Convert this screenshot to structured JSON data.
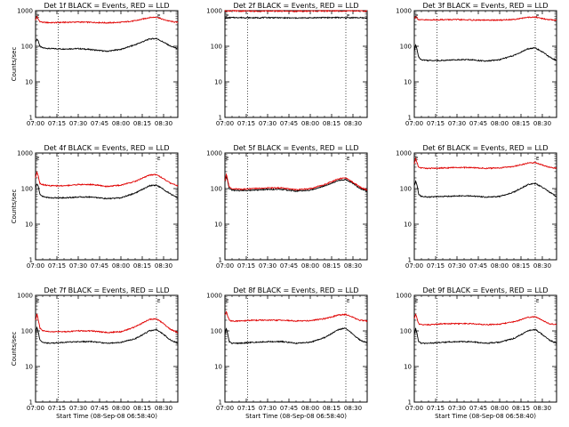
{
  "figure": {
    "background": "#ffffff",
    "axis_color": "#000000",
    "series_colors": {
      "events": "#000000",
      "lld": "#e00000"
    }
  },
  "chart_data": [
    {
      "type": "line",
      "title": "Det 1f BLACK = Events, RED = LLD",
      "ylabel": "Counts/sec",
      "xlabel": "",
      "yscale": "log",
      "ylim": [
        1,
        1000
      ],
      "x_ticks": [
        "07:00",
        "07:15",
        "07:30",
        "07:45",
        "08:00",
        "08:15",
        "08:30"
      ],
      "xlim_min": [
        0,
        100
      ],
      "y_ticks": [
        "1",
        "10",
        "100",
        "1000"
      ],
      "vlines_min": [
        16,
        85
      ],
      "marker_labels": [
        {
          "text": "E",
          "at_min": 85
        }
      ],
      "series": [
        {
          "name": "Events",
          "color": "#000000",
          "x": [
            0,
            1,
            2,
            3,
            5,
            10,
            20,
            30,
            40,
            50,
            60,
            70,
            80,
            85,
            90,
            95,
            100
          ],
          "y": [
            130,
            160,
            140,
            100,
            90,
            86,
            84,
            86,
            80,
            72,
            82,
            110,
            160,
            165,
            130,
            100,
            85
          ]
        },
        {
          "name": "LLD",
          "color": "#e00000",
          "x": [
            0,
            1,
            2,
            3,
            5,
            10,
            20,
            30,
            40,
            50,
            60,
            70,
            80,
            85,
            90,
            95,
            100
          ],
          "y": [
            550,
            700,
            560,
            500,
            470,
            460,
            470,
            480,
            470,
            455,
            470,
            520,
            640,
            660,
            560,
            500,
            470
          ]
        }
      ]
    },
    {
      "type": "line",
      "title": "Det 2f BLACK = Events, RED = LLD",
      "ylabel": "",
      "xlabel": "",
      "yscale": "log",
      "ylim": [
        1,
        1000
      ],
      "x_ticks": [
        "07:00",
        "07:15",
        "07:30",
        "07:45",
        "08:00",
        "08:15",
        "08:30"
      ],
      "xlim_min": [
        0,
        100
      ],
      "y_ticks": [
        "1",
        "10",
        "100",
        "1000"
      ],
      "vlines_min": [
        16,
        85
      ],
      "marker_labels": [
        {
          "text": "E",
          "at_min": 85
        }
      ],
      "series": [
        {
          "name": "Events",
          "color": "#000000",
          "x": [
            0,
            5,
            10,
            20,
            30,
            40,
            50,
            60,
            70,
            80,
            85,
            90,
            100
          ],
          "y": [
            620,
            640,
            640,
            630,
            640,
            630,
            620,
            630,
            640,
            640,
            630,
            640,
            620
          ]
        },
        {
          "name": "LLD",
          "color": "#e00000",
          "x": [
            0,
            5,
            10,
            20,
            30,
            40,
            50,
            60,
            70,
            80,
            85,
            90,
            100
          ],
          "y": [
            980,
            990,
            980,
            970,
            980,
            975,
            965,
            975,
            985,
            985,
            975,
            985,
            970
          ]
        }
      ]
    },
    {
      "type": "line",
      "title": "Det 3f BLACK = Events, RED = LLD",
      "ylabel": "",
      "xlabel": "",
      "yscale": "log",
      "ylim": [
        1,
        1000
      ],
      "x_ticks": [
        "07:00",
        "07:15",
        "07:30",
        "07:45",
        "08:00",
        "08:15",
        "08:30"
      ],
      "xlim_min": [
        0,
        100
      ],
      "y_ticks": [
        "1",
        "10",
        "100",
        "1000"
      ],
      "vlines_min": [
        16,
        85
      ],
      "marker_labels": [
        {
          "text": "E",
          "at_min": 85
        }
      ],
      "series": [
        {
          "name": "Events",
          "color": "#000000",
          "x": [
            0,
            1,
            2,
            3,
            5,
            10,
            20,
            30,
            40,
            50,
            60,
            70,
            80,
            85,
            90,
            95,
            100
          ],
          "y": [
            70,
            110,
            80,
            50,
            42,
            40,
            40,
            42,
            42,
            38,
            42,
            55,
            85,
            90,
            70,
            50,
            40
          ]
        },
        {
          "name": "LLD",
          "color": "#e00000",
          "x": [
            0,
            1,
            2,
            3,
            5,
            10,
            20,
            30,
            40,
            50,
            60,
            70,
            80,
            85,
            90,
            95,
            100
          ],
          "y": [
            600,
            700,
            620,
            560,
            550,
            550,
            560,
            560,
            550,
            540,
            545,
            570,
            650,
            660,
            600,
            560,
            540
          ]
        }
      ]
    },
    {
      "type": "line",
      "title": "Det 4f BLACK = Events, RED = LLD",
      "ylabel": "Counts/sec",
      "xlabel": "",
      "yscale": "log",
      "ylim": [
        1,
        1000
      ],
      "x_ticks": [
        "07:00",
        "07:15",
        "07:30",
        "07:45",
        "08:00",
        "08:15",
        "08:30"
      ],
      "xlim_min": [
        0,
        100
      ],
      "y_ticks": [
        "1",
        "10",
        "100",
        "1000"
      ],
      "vlines_min": [
        16,
        85
      ],
      "marker_labels": [
        {
          "text": "E",
          "at_min": 85
        }
      ],
      "series": [
        {
          "name": "Events",
          "color": "#000000",
          "x": [
            0,
            1,
            2,
            3,
            5,
            10,
            20,
            30,
            40,
            50,
            60,
            70,
            80,
            85,
            90,
            95,
            100
          ],
          "y": [
            100,
            140,
            110,
            70,
            60,
            55,
            55,
            58,
            58,
            52,
            55,
            75,
            120,
            125,
            95,
            70,
            55
          ]
        },
        {
          "name": "LLD",
          "color": "#e00000",
          "x": [
            0,
            1,
            2,
            3,
            5,
            10,
            20,
            30,
            40,
            50,
            60,
            70,
            80,
            85,
            90,
            95,
            100
          ],
          "y": [
            200,
            300,
            220,
            140,
            130,
            120,
            120,
            130,
            130,
            115,
            125,
            160,
            240,
            250,
            190,
            140,
            120
          ]
        }
      ]
    },
    {
      "type": "line",
      "title": "Det 5f BLACK = Events, RED = LLD",
      "ylabel": "",
      "xlabel": "",
      "yscale": "log",
      "ylim": [
        1,
        1000
      ],
      "x_ticks": [
        "07:00",
        "07:15",
        "07:30",
        "07:45",
        "08:00",
        "08:15",
        "08:30"
      ],
      "xlim_min": [
        0,
        100
      ],
      "y_ticks": [
        "1",
        "10",
        "100",
        "1000"
      ],
      "vlines_min": [
        16,
        85
      ],
      "marker_labels": [
        {
          "text": "E",
          "at_min": 85
        }
      ],
      "series": [
        {
          "name": "Events",
          "color": "#000000",
          "x": [
            0,
            1,
            2,
            3,
            5,
            10,
            20,
            30,
            40,
            50,
            60,
            70,
            80,
            85,
            90,
            95,
            100
          ],
          "y": [
            150,
            220,
            160,
            100,
            90,
            88,
            90,
            95,
            95,
            85,
            90,
            120,
            170,
            180,
            140,
            100,
            85
          ]
        },
        {
          "name": "LLD",
          "color": "#e00000",
          "x": [
            0,
            1,
            2,
            3,
            5,
            10,
            20,
            30,
            40,
            50,
            60,
            70,
            80,
            85,
            90,
            95,
            100
          ],
          "y": [
            160,
            250,
            170,
            110,
            100,
            96,
            100,
            105,
            105,
            92,
            100,
            130,
            190,
            200,
            150,
            110,
            92
          ]
        }
      ]
    },
    {
      "type": "line",
      "title": "Det 6f BLACK = Events, RED = LLD",
      "ylabel": "",
      "xlabel": "",
      "yscale": "log",
      "ylim": [
        1,
        1000
      ],
      "x_ticks": [
        "07:00",
        "07:15",
        "07:30",
        "07:45",
        "08:00",
        "08:15",
        "08:30"
      ],
      "xlim_min": [
        0,
        100
      ],
      "y_ticks": [
        "1",
        "10",
        "100",
        "1000"
      ],
      "vlines_min": [
        16,
        85
      ],
      "marker_labels": [
        {
          "text": "E",
          "at_min": 85
        }
      ],
      "series": [
        {
          "name": "Events",
          "color": "#000000",
          "x": [
            0,
            1,
            2,
            3,
            5,
            10,
            20,
            30,
            40,
            50,
            60,
            70,
            80,
            85,
            90,
            95,
            100
          ],
          "y": [
            120,
            160,
            120,
            70,
            60,
            58,
            60,
            62,
            62,
            58,
            60,
            80,
            130,
            140,
            110,
            80,
            60
          ]
        },
        {
          "name": "LLD",
          "color": "#e00000",
          "x": [
            0,
            1,
            2,
            3,
            5,
            10,
            20,
            30,
            40,
            50,
            60,
            70,
            80,
            85,
            90,
            95,
            100
          ],
          "y": [
            500,
            700,
            520,
            400,
            380,
            370,
            380,
            390,
            390,
            370,
            380,
            420,
            520,
            540,
            460,
            400,
            370
          ]
        }
      ]
    },
    {
      "type": "line",
      "title": "Det 7f BLACK = Events, RED = LLD",
      "ylabel": "Counts/sec",
      "xlabel": "Start Time (08-Sep-08 06:58:40)",
      "yscale": "log",
      "ylim": [
        1,
        1000
      ],
      "x_ticks": [
        "07:00",
        "07:15",
        "07:30",
        "07:45",
        "08:00",
        "08:15",
        "08:30"
      ],
      "xlim_min": [
        0,
        100
      ],
      "y_ticks": [
        "1",
        "10",
        "100",
        "1000"
      ],
      "vlines_min": [
        16,
        85
      ],
      "marker_labels": [
        {
          "text": "E",
          "at_min": 85
        }
      ],
      "series": [
        {
          "name": "Events",
          "color": "#000000",
          "x": [
            0,
            1,
            2,
            3,
            5,
            10,
            20,
            30,
            40,
            50,
            60,
            70,
            80,
            85,
            90,
            95,
            100
          ],
          "y": [
            80,
            130,
            90,
            55,
            48,
            45,
            48,
            50,
            50,
            45,
            48,
            60,
            100,
            110,
            80,
            55,
            45
          ]
        },
        {
          "name": "LLD",
          "color": "#e00000",
          "x": [
            0,
            1,
            2,
            3,
            5,
            10,
            20,
            30,
            40,
            50,
            60,
            70,
            80,
            85,
            90,
            95,
            100
          ],
          "y": [
            200,
            300,
            200,
            120,
            100,
            95,
            95,
            100,
            100,
            90,
            95,
            130,
            210,
            220,
            160,
            110,
            90
          ]
        }
      ]
    },
    {
      "type": "line",
      "title": "Det 8f BLACK = Events, RED = LLD",
      "ylabel": "",
      "xlabel": "Start Time (08-Sep-08 06:58:40)",
      "yscale": "log",
      "ylim": [
        1,
        1000
      ],
      "x_ticks": [
        "07:00",
        "07:15",
        "07:30",
        "07:45",
        "08:00",
        "08:15",
        "08:30"
      ],
      "xlim_min": [
        0,
        100
      ],
      "y_ticks": [
        "1",
        "10",
        "100",
        "1000"
      ],
      "vlines_min": [
        16,
        85
      ],
      "marker_labels": [
        {
          "text": "E",
          "at_min": 85
        }
      ],
      "series": [
        {
          "name": "Events",
          "color": "#000000",
          "x": [
            0,
            1,
            2,
            3,
            5,
            10,
            20,
            30,
            40,
            50,
            60,
            70,
            80,
            85,
            90,
            95,
            100
          ],
          "y": [
            80,
            120,
            80,
            50,
            45,
            45,
            48,
            50,
            50,
            45,
            48,
            65,
            110,
            120,
            80,
            55,
            45
          ]
        },
        {
          "name": "LLD",
          "color": "#e00000",
          "x": [
            0,
            1,
            2,
            3,
            5,
            10,
            20,
            30,
            40,
            50,
            60,
            70,
            80,
            85,
            90,
            95,
            100
          ],
          "y": [
            280,
            350,
            260,
            200,
            190,
            190,
            200,
            200,
            200,
            190,
            195,
            220,
            280,
            290,
            240,
            200,
            190
          ]
        }
      ]
    },
    {
      "type": "line",
      "title": "Det 9f BLACK = Events, RED = LLD",
      "ylabel": "",
      "xlabel": "Start Time (08-Sep-08 06:58:40)",
      "yscale": "log",
      "ylim": [
        1,
        1000
      ],
      "x_ticks": [
        "07:00",
        "07:15",
        "07:30",
        "07:45",
        "08:00",
        "08:15",
        "08:30"
      ],
      "xlim_min": [
        0,
        100
      ],
      "y_ticks": [
        "1",
        "10",
        "100",
        "1000"
      ],
      "vlines_min": [
        16,
        85
      ],
      "marker_labels": [
        {
          "text": "E",
          "at_min": 85
        }
      ],
      "series": [
        {
          "name": "Events",
          "color": "#000000",
          "x": [
            0,
            1,
            2,
            3,
            5,
            10,
            20,
            30,
            40,
            50,
            60,
            70,
            80,
            85,
            90,
            95,
            100
          ],
          "y": [
            80,
            120,
            80,
            50,
            45,
            45,
            48,
            50,
            50,
            45,
            48,
            62,
            100,
            110,
            80,
            55,
            45
          ]
        },
        {
          "name": "LLD",
          "color": "#e00000",
          "x": [
            0,
            1,
            2,
            3,
            5,
            10,
            20,
            30,
            40,
            50,
            60,
            70,
            80,
            85,
            90,
            95,
            100
          ],
          "y": [
            220,
            300,
            220,
            160,
            150,
            150,
            160,
            160,
            160,
            150,
            155,
            180,
            240,
            250,
            200,
            160,
            150
          ]
        }
      ]
    }
  ]
}
